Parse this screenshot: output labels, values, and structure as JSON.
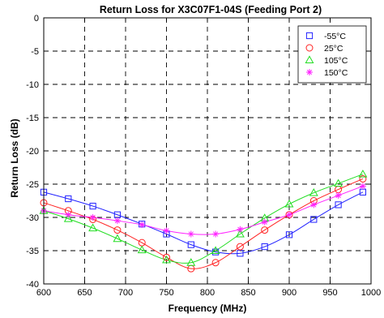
{
  "chart_data": {
    "type": "line",
    "title": "Return Loss for X3C07F1-04S (Feeding Port 2)",
    "xlabel": "Frequency (MHz)",
    "ylabel": "Return Loss (dB)",
    "xlim": [
      600,
      1000
    ],
    "ylim": [
      -40,
      0
    ],
    "xticks": [
      600,
      650,
      700,
      750,
      800,
      850,
      900,
      950,
      1000
    ],
    "yticks": [
      0,
      -5,
      -10,
      -15,
      -20,
      -25,
      -30,
      -35,
      -40
    ],
    "grid": true,
    "legend_position": "top-right",
    "series": [
      {
        "name": "-55°C",
        "color": "#2222ff",
        "marker": "square",
        "x": [
          600,
          630,
          660,
          690,
          720,
          750,
          780,
          810,
          840,
          870,
          900,
          930,
          960,
          990
        ],
        "y": [
          -26.2,
          -27.2,
          -28.3,
          -29.6,
          -31.0,
          -32.5,
          -34.1,
          -35.2,
          -35.4,
          -34.4,
          -32.6,
          -30.3,
          -28.1,
          -26.2
        ]
      },
      {
        "name": "25°C",
        "color": "#ff2222",
        "marker": "circle",
        "x": [
          600,
          630,
          660,
          690,
          720,
          750,
          780,
          810,
          840,
          870,
          900,
          930,
          960,
          990
        ],
        "y": [
          -27.8,
          -29.0,
          -30.3,
          -31.9,
          -33.8,
          -36.0,
          -37.7,
          -36.8,
          -34.4,
          -31.9,
          -29.6,
          -27.5,
          -25.8,
          -24.2
        ]
      },
      {
        "name": "105°C",
        "color": "#22dd22",
        "marker": "triangle",
        "x": [
          600,
          630,
          660,
          690,
          720,
          750,
          780,
          810,
          840,
          870,
          900,
          930,
          960,
          990
        ],
        "y": [
          -29.0,
          -30.2,
          -31.6,
          -33.2,
          -34.9,
          -36.4,
          -36.8,
          -35.0,
          -32.5,
          -30.1,
          -28.0,
          -26.3,
          -24.9,
          -23.5
        ]
      },
      {
        "name": "150°C",
        "color": "#ff22ff",
        "marker": "star",
        "x": [
          600,
          630,
          660,
          690,
          720,
          750,
          780,
          810,
          840,
          870,
          900,
          930,
          960,
          990
        ],
        "y": [
          -29.0,
          -29.6,
          -30.0,
          -30.5,
          -31.1,
          -32.0,
          -32.5,
          -32.5,
          -31.8,
          -30.7,
          -29.6,
          -28.1,
          -26.7,
          -25.3
        ]
      }
    ]
  }
}
